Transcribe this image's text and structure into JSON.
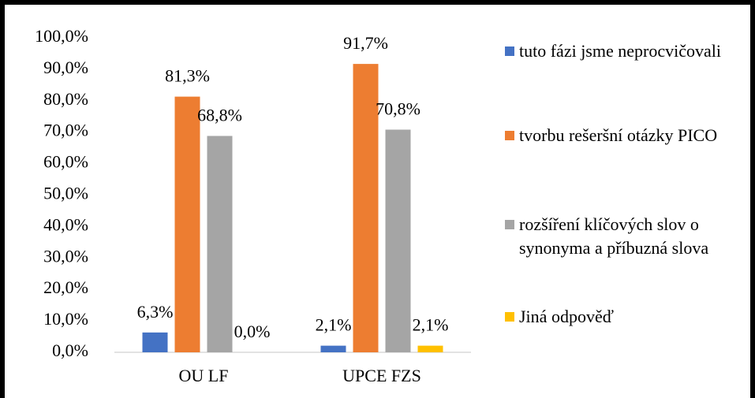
{
  "chart_data": {
    "type": "bar",
    "categories": [
      "OU LF",
      "UPCE FZS"
    ],
    "series": [
      {
        "name": "tuto fázi jsme neprocvičovali",
        "color": "#4472c4",
        "values": [
          6.3,
          2.1
        ],
        "value_labels": [
          "6,3%",
          "2,1%"
        ]
      },
      {
        "name": "tvorbu rešeršní otázky PICO",
        "color": "#ed7d31",
        "values": [
          81.3,
          91.7
        ],
        "value_labels": [
          "81,3%",
          "91,7%"
        ]
      },
      {
        "name": "rozšíření klíčových slov o synonyma a příbuzná slova",
        "color": "#a5a5a5",
        "values": [
          68.8,
          70.8
        ],
        "value_labels": [
          "68,8%",
          "70,8%"
        ]
      },
      {
        "name": "Jiná odpověď",
        "color": "#ffc000",
        "values": [
          0.0,
          2.1
        ],
        "value_labels": [
          "0,0%",
          "2,1%"
        ]
      }
    ],
    "ylim": [
      0,
      100
    ],
    "yticks": [
      {
        "value": 0,
        "label": "0,0%"
      },
      {
        "value": 10,
        "label": "10,0%"
      },
      {
        "value": 20,
        "label": "20,0%"
      },
      {
        "value": 30,
        "label": "30,0%"
      },
      {
        "value": 40,
        "label": "40,0%"
      },
      {
        "value": 50,
        "label": "50,0%"
      },
      {
        "value": 60,
        "label": "60,0%"
      },
      {
        "value": 70,
        "label": "70,0%"
      },
      {
        "value": 80,
        "label": "80,0%"
      },
      {
        "value": 90,
        "label": "90,0%"
      },
      {
        "value": 100,
        "label": "100,0%"
      }
    ],
    "grid": false,
    "legend": "right"
  }
}
